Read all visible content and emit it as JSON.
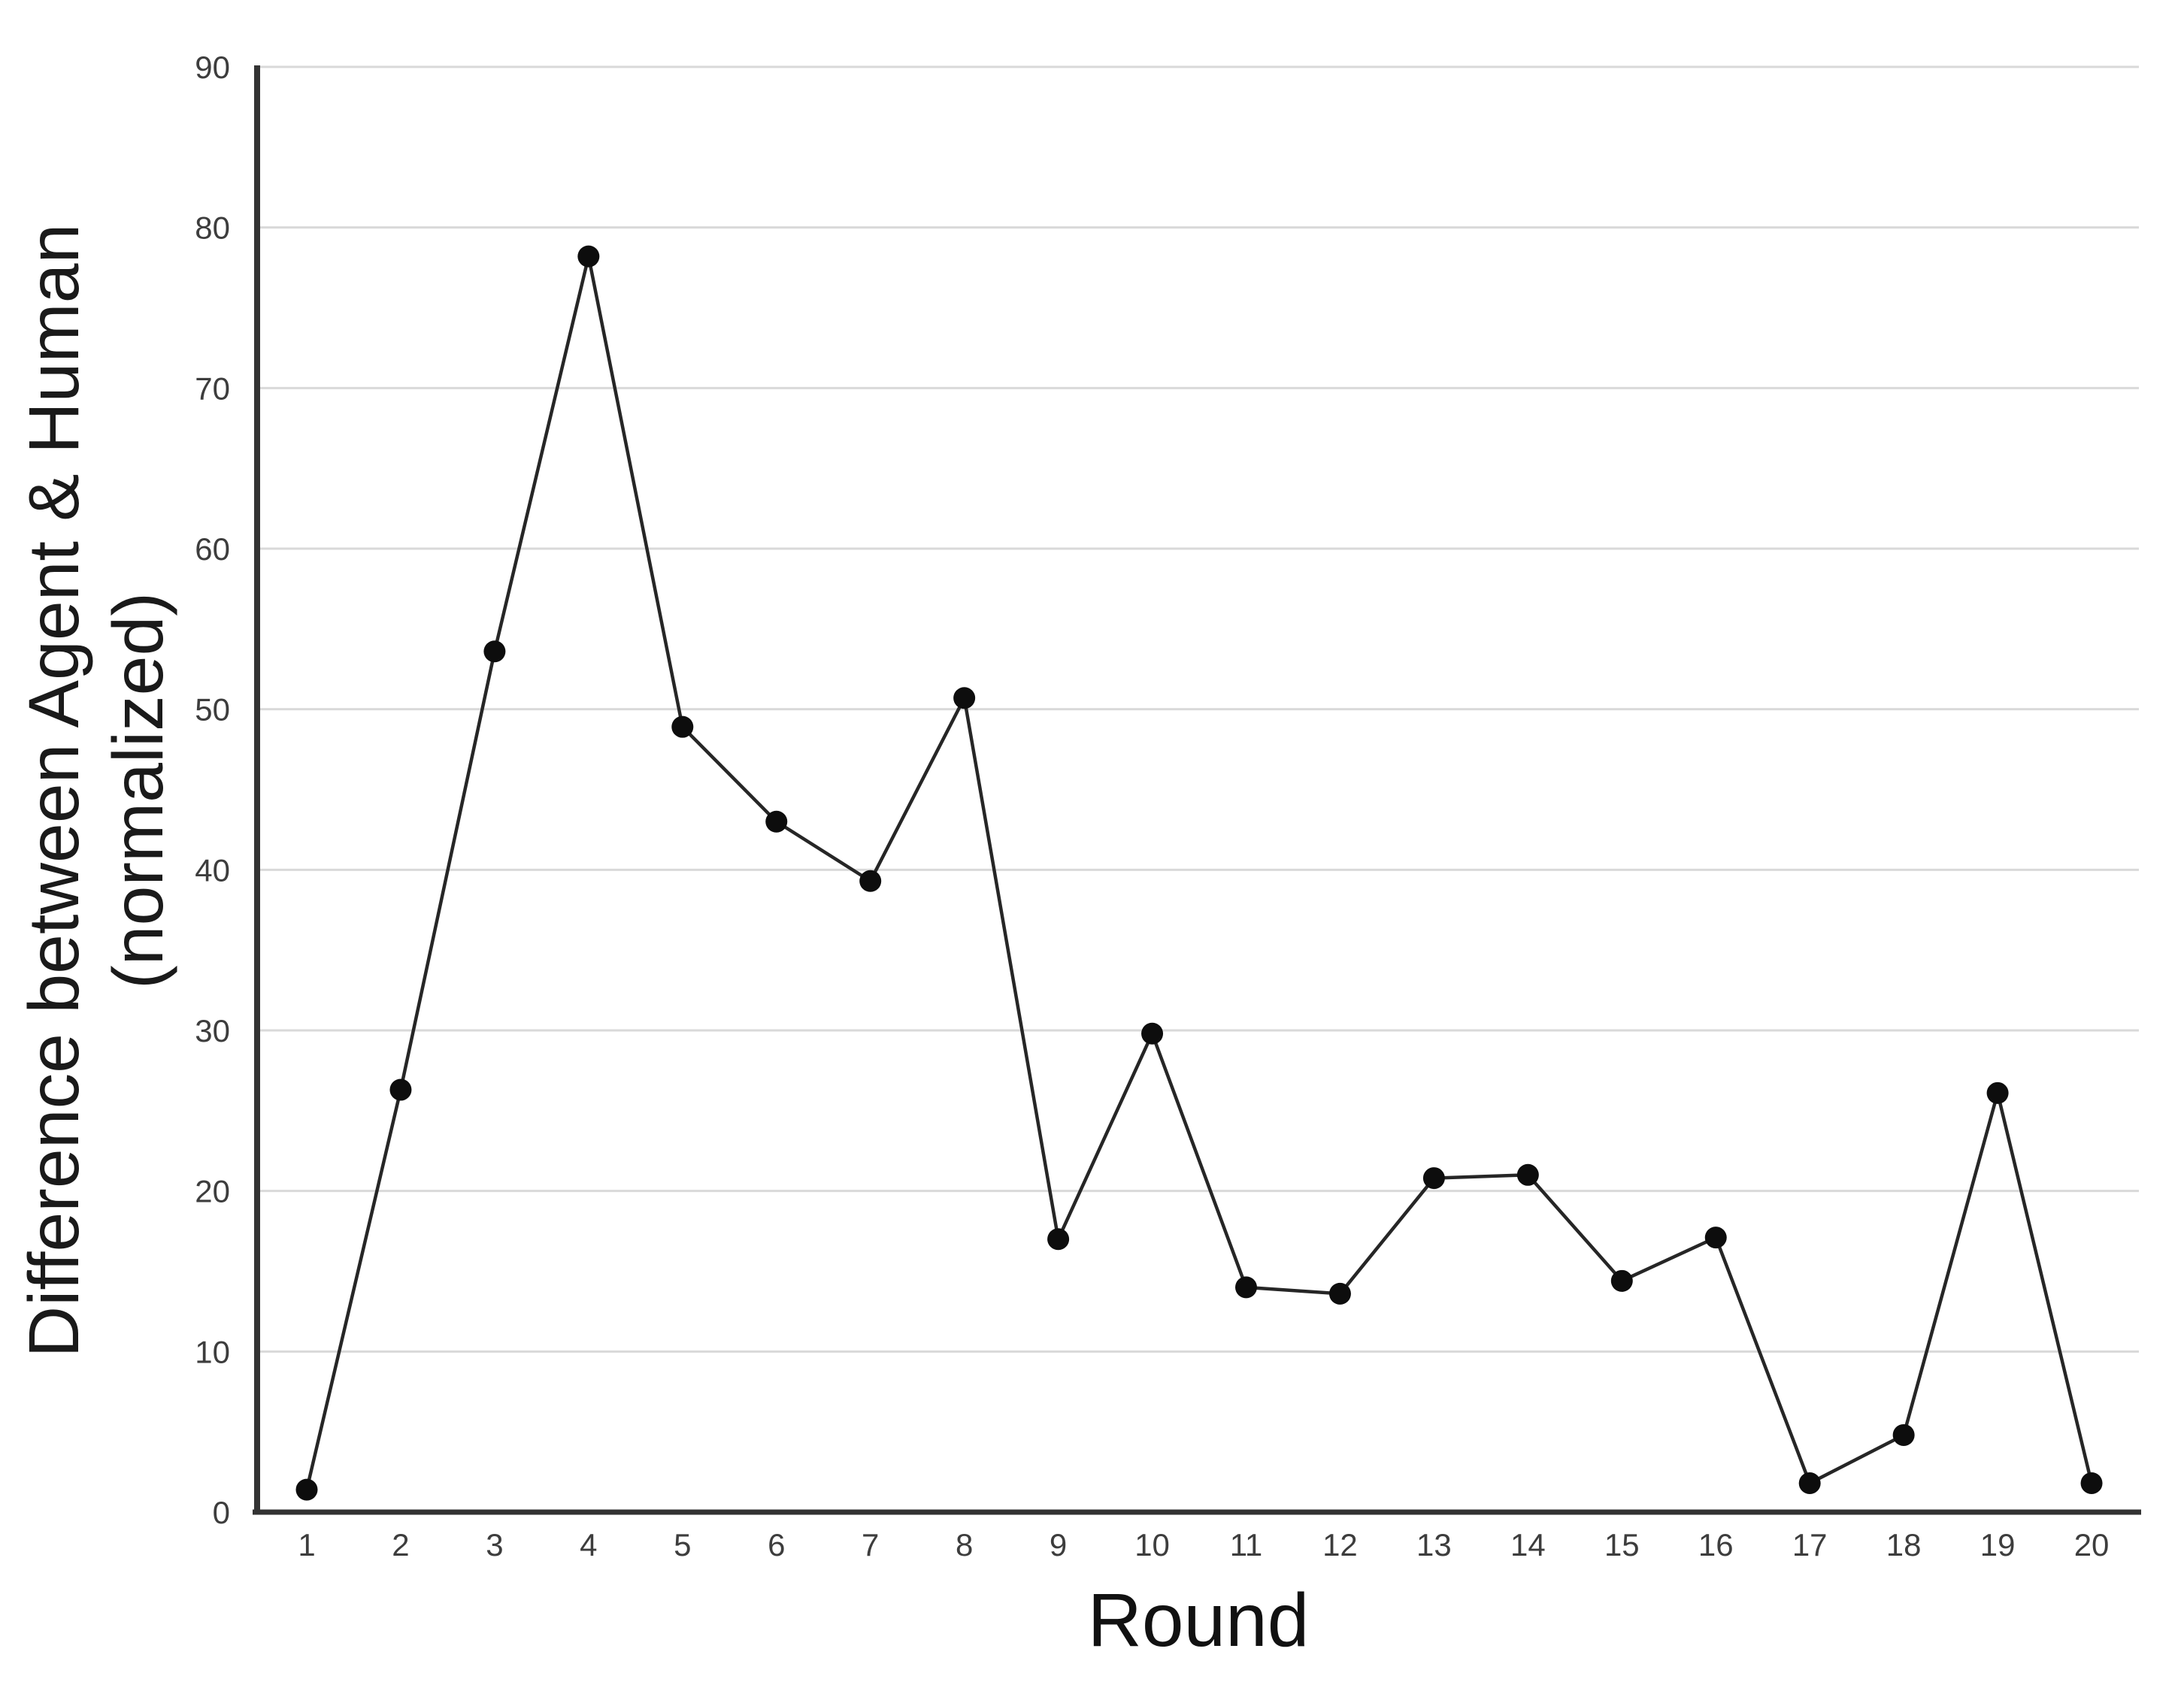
{
  "page": {
    "background_color": "#ffffff"
  },
  "chart_data": {
    "type": "line",
    "title": "",
    "xlabel": "Round",
    "ylabel": "Difference between Agent & Human (normalized)",
    "ylabel_lines": [
      "Difference between Agent & Human",
      "(normalized)"
    ],
    "categories": [
      1,
      2,
      3,
      4,
      5,
      6,
      7,
      8,
      9,
      10,
      11,
      12,
      13,
      14,
      15,
      16,
      17,
      18,
      19,
      20
    ],
    "series": [
      {
        "name": "Difference between Agent & Human (normalized)",
        "values": [
          1.4,
          26.3,
          53.6,
          78.2,
          48.9,
          43.0,
          39.3,
          50.7,
          17.0,
          29.8,
          14.0,
          13.6,
          20.8,
          21.0,
          14.4,
          17.1,
          1.8,
          4.8,
          26.1,
          1.8
        ]
      }
    ],
    "ylim": [
      0,
      90
    ],
    "ytick_step": 10,
    "ytick_labels": [
      "0",
      "10",
      "20",
      "30",
      "40",
      "50",
      "60",
      "70",
      "80",
      "90"
    ],
    "xtick_labels": [
      "1",
      "2",
      "3",
      "4",
      "5",
      "6",
      "7",
      "8",
      "9",
      "10",
      "11",
      "12",
      "13",
      "14",
      "15",
      "16",
      "17",
      "18",
      "19",
      "20"
    ],
    "grid": "horizontal",
    "legend": "none",
    "marker": "filled-circle",
    "colors": {
      "series_line": "#262626",
      "marker_fill": "#0d0d0d",
      "gridline": "#d9d9d9",
      "axis_line": "#333333",
      "tick_label": "#3d3d3d",
      "axis_title": "#111111"
    }
  }
}
